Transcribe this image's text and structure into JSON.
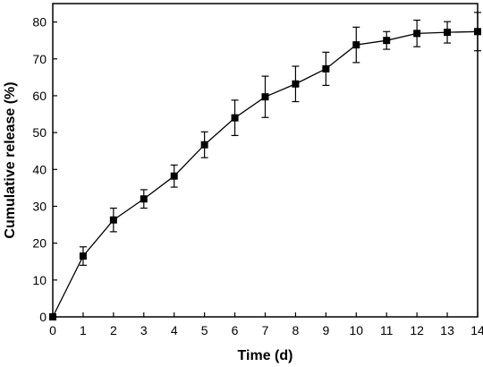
{
  "chart_data": {
    "type": "line",
    "title": "",
    "xlabel": "Time (d)",
    "ylabel": "Cumulative release (%)",
    "xlim": [
      0,
      14
    ],
    "ylim": [
      0,
      85
    ],
    "xticks": [
      0,
      1,
      2,
      3,
      4,
      5,
      6,
      7,
      8,
      9,
      10,
      11,
      12,
      13,
      14
    ],
    "yticks": [
      0,
      10,
      20,
      30,
      40,
      50,
      60,
      70,
      80
    ],
    "grid": false,
    "legend": "none",
    "marker": "square",
    "line_color": "#000000",
    "series": [
      {
        "x": [
          0,
          1,
          2,
          3,
          4,
          5,
          6,
          7,
          8,
          9,
          10,
          11,
          12,
          13,
          14
        ],
        "y": [
          0,
          16.5,
          26.3,
          32.0,
          38.2,
          46.7,
          54.0,
          59.7,
          63.2,
          67.3,
          73.8,
          75.0,
          76.9,
          77.2,
          77.4
        ],
        "error": [
          0,
          2.5,
          3.2,
          2.5,
          3.0,
          3.5,
          4.8,
          5.6,
          4.8,
          4.5,
          4.8,
          2.4,
          3.6,
          2.9,
          5.2
        ]
      }
    ]
  }
}
